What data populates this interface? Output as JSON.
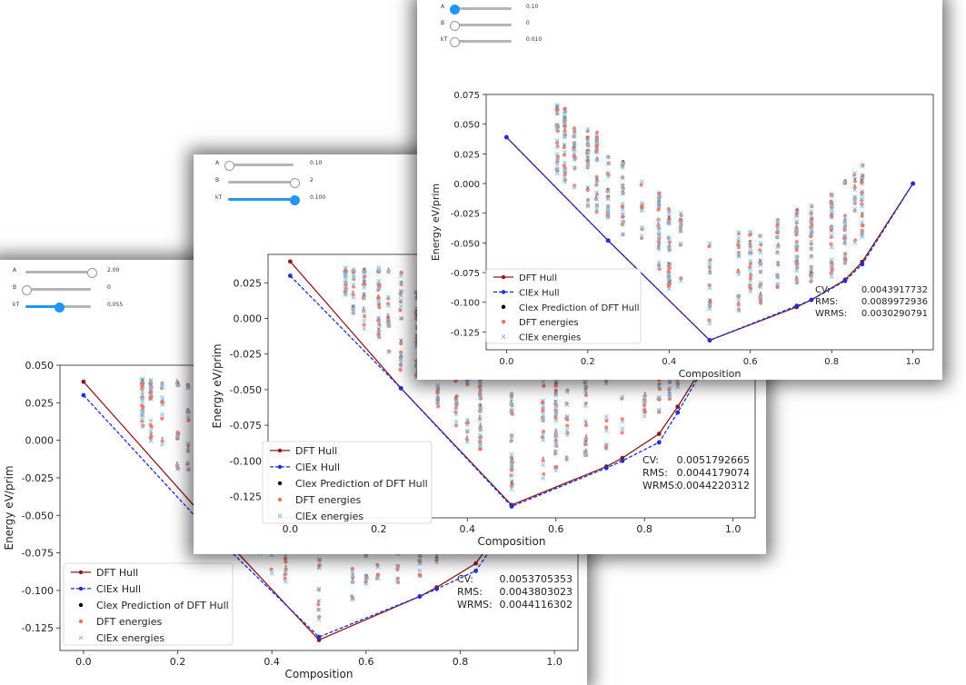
{
  "panels": [
    {
      "sliders": [
        {
          "label": "A",
          "value_text": "2.00",
          "level": 1.0,
          "active": false
        },
        {
          "label": "B",
          "value_text": "0",
          "level": 0.0,
          "active": false
        },
        {
          "label": "kT",
          "value_text": "0.055",
          "level": 0.5,
          "active": true
        }
      ],
      "stats": [
        {
          "label": "CV:",
          "value": "0.0053705353"
        },
        {
          "label": "RMS:",
          "value": "0.0043803023"
        },
        {
          "label": "WRMS:",
          "value": "0.0044116302"
        }
      ]
    },
    {
      "sliders": [
        {
          "label": "A",
          "value_text": "0.10",
          "level": 0.0,
          "active": false
        },
        {
          "label": "B",
          "value_text": "2",
          "level": 1.0,
          "active": false
        },
        {
          "label": "kT",
          "value_text": "0.100",
          "level": 1.0,
          "active": true
        }
      ],
      "stats": [
        {
          "label": "CV:",
          "value": "0.0051792665"
        },
        {
          "label": "RMS:",
          "value": "0.0044179074"
        },
        {
          "label": "WRMS:",
          "value": "0.0044220312"
        }
      ]
    },
    {
      "sliders": [
        {
          "label": "A",
          "value_text": "0.10",
          "level": 0.0,
          "active": true
        },
        {
          "label": "B",
          "value_text": "0",
          "level": 0.0,
          "active": false
        },
        {
          "label": "kT",
          "value_text": "0.010",
          "level": 0.0,
          "active": false
        }
      ],
      "stats": [
        {
          "label": "CV:",
          "value": "0.0043917732"
        },
        {
          "label": "RMS:",
          "value": "0.0089972936"
        },
        {
          "label": "WRMS:",
          "value": "0.0030290791"
        }
      ]
    }
  ],
  "colors": {
    "dft_hull": "#8b1a1a",
    "clex_hull": "#1f2fd6",
    "clex_pred": "#000000",
    "dft_energies": "#f4705a",
    "clex_energies": "#7ec3ea",
    "slider_accent": "#2196f3"
  },
  "chart_data": [
    {
      "type": "scatter",
      "xlabel": "Composition",
      "ylabel": "Energy eV/prim",
      "xlim": [
        -0.05,
        1.05
      ],
      "ylim": [
        -0.14,
        0.05
      ],
      "xticks": [
        "0.0",
        "0.2",
        "0.4",
        "0.6",
        "0.8",
        "1.0"
      ],
      "yticks": [
        "-0.125",
        "-0.100",
        "-0.075",
        "-0.050",
        "-0.025",
        "0.000",
        "0.025",
        "0.050"
      ],
      "legend": [
        "DFT Hull",
        "ClEx Hull",
        "Clex Prediction of DFT Hull",
        "DFT energies",
        "ClEx energies"
      ],
      "legend_loc": "lower left",
      "series": [
        {
          "name": "DFT Hull",
          "x": [
            0.0,
            0.25,
            0.5,
            0.714,
            0.75,
            0.833,
            0.875,
            1.0
          ],
          "y": [
            0.039,
            -0.049,
            -0.133,
            -0.104,
            -0.098,
            -0.082,
            -0.064,
            0.0
          ]
        },
        {
          "name": "ClEx Hull",
          "x": [
            0.0,
            0.25,
            0.5,
            0.714,
            0.75,
            0.833,
            0.875,
            1.0
          ],
          "y": [
            0.03,
            -0.055,
            -0.131,
            -0.104,
            -0.099,
            -0.087,
            -0.068,
            0.0
          ]
        }
      ]
    },
    {
      "type": "scatter",
      "xlabel": "Composition",
      "ylabel": "Energy eV/prim",
      "xlim": [
        -0.05,
        1.05
      ],
      "ylim": [
        -0.14,
        0.045
      ],
      "xticks": [
        "0.0",
        "0.2",
        "0.4",
        "0.6",
        "0.8",
        "1.0"
      ],
      "yticks": [
        "-0.125",
        "-0.100",
        "-0.075",
        "-0.050",
        "-0.025",
        "0.000",
        "0.025"
      ],
      "legend": [
        "DFT Hull",
        "ClEx Hull",
        "Clex Prediction of DFT Hull",
        "DFT energies",
        "ClEx energies"
      ],
      "legend_loc": "lower left",
      "series": [
        {
          "name": "DFT Hull",
          "x": [
            0.0,
            0.25,
            0.5,
            0.714,
            0.75,
            0.833,
            0.875,
            1.0
          ],
          "y": [
            0.04,
            -0.049,
            -0.131,
            -0.104,
            -0.098,
            -0.081,
            -0.062,
            0.0
          ]
        },
        {
          "name": "ClEx Hull",
          "x": [
            0.0,
            0.25,
            0.5,
            0.714,
            0.75,
            0.833,
            0.875,
            1.0
          ],
          "y": [
            0.03,
            -0.049,
            -0.132,
            -0.105,
            -0.1,
            -0.087,
            -0.066,
            0.0
          ]
        }
      ]
    },
    {
      "type": "scatter",
      "xlabel": "Composition",
      "ylabel": "Energy eV/prim",
      "xlim": [
        -0.05,
        1.05
      ],
      "ylim": [
        -0.14,
        0.075
      ],
      "xticks": [
        "0.0",
        "0.2",
        "0.4",
        "0.6",
        "0.8",
        "1.0"
      ],
      "yticks": [
        "-0.125",
        "-0.100",
        "-0.075",
        "-0.050",
        "-0.025",
        "0.000",
        "0.025",
        "0.050",
        "0.075"
      ],
      "legend": [
        "DFT Hull",
        "ClEx Hull",
        "Clex Prediction of DFT Hull",
        "DFT energies",
        "ClEx energies"
      ],
      "legend_loc": "lower left",
      "series": [
        {
          "name": "DFT Hull",
          "x": [
            0.0,
            0.25,
            0.5,
            0.714,
            0.75,
            0.833,
            0.875,
            1.0
          ],
          "y": [
            0.039,
            -0.048,
            -0.132,
            -0.104,
            -0.098,
            -0.081,
            -0.066,
            0.0
          ]
        },
        {
          "name": "ClEx Hull",
          "x": [
            0.0,
            0.25,
            0.5,
            0.714,
            0.75,
            0.833,
            0.875,
            1.0
          ],
          "y": [
            0.039,
            -0.048,
            -0.132,
            -0.103,
            -0.098,
            -0.082,
            -0.068,
            0.0
          ]
        }
      ]
    }
  ]
}
